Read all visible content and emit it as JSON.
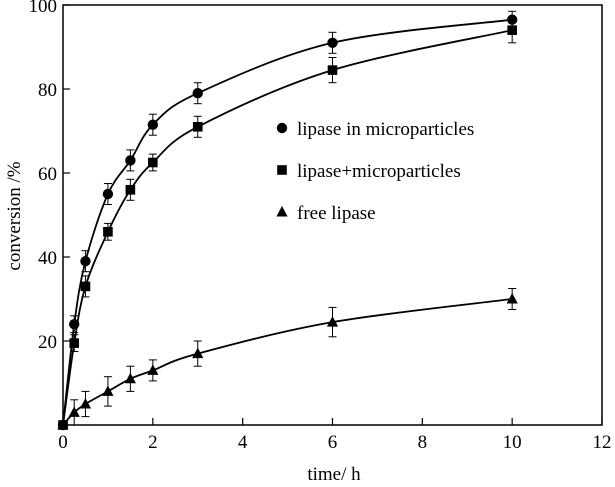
{
  "chart_data": {
    "type": "scatter",
    "xlabel": "time/ h",
    "ylabel": "conversion /%",
    "xlim": [
      0,
      12
    ],
    "ylim": [
      0,
      100
    ],
    "xticks": [
      0,
      2,
      4,
      6,
      8,
      10,
      12
    ],
    "yticks": [
      20,
      40,
      60,
      80,
      100
    ],
    "grid": false,
    "legend_position": "right-middle",
    "series": [
      {
        "name": "lipase in microparticles",
        "marker": "circle",
        "x": [
          0,
          0.25,
          0.5,
          1,
          1.5,
          2,
          3,
          6,
          10
        ],
        "y": [
          0,
          24,
          39,
          55,
          63,
          71.5,
          79,
          91,
          96.5
        ],
        "err": [
          0,
          2,
          2.5,
          2.5,
          2.5,
          2.5,
          2.5,
          2.5,
          2
        ]
      },
      {
        "name": "lipase+microparticles",
        "marker": "square",
        "x": [
          0,
          0.25,
          0.5,
          1,
          1.5,
          2,
          3,
          6,
          10
        ],
        "y": [
          0,
          19.5,
          33,
          46,
          56,
          62.5,
          71,
          84.5,
          94
        ],
        "err": [
          0,
          2,
          2.5,
          2,
          2.5,
          2,
          2.5,
          3,
          3
        ]
      },
      {
        "name": "free lipase",
        "marker": "triangle",
        "x": [
          0,
          0.25,
          0.5,
          1,
          1.5,
          2,
          3,
          6,
          10
        ],
        "y": [
          0,
          3,
          5,
          8,
          11,
          13,
          17,
          24.5,
          30
        ],
        "err": [
          0,
          3,
          3,
          3.5,
          3,
          2.5,
          3,
          3.5,
          2.5
        ]
      }
    ]
  }
}
